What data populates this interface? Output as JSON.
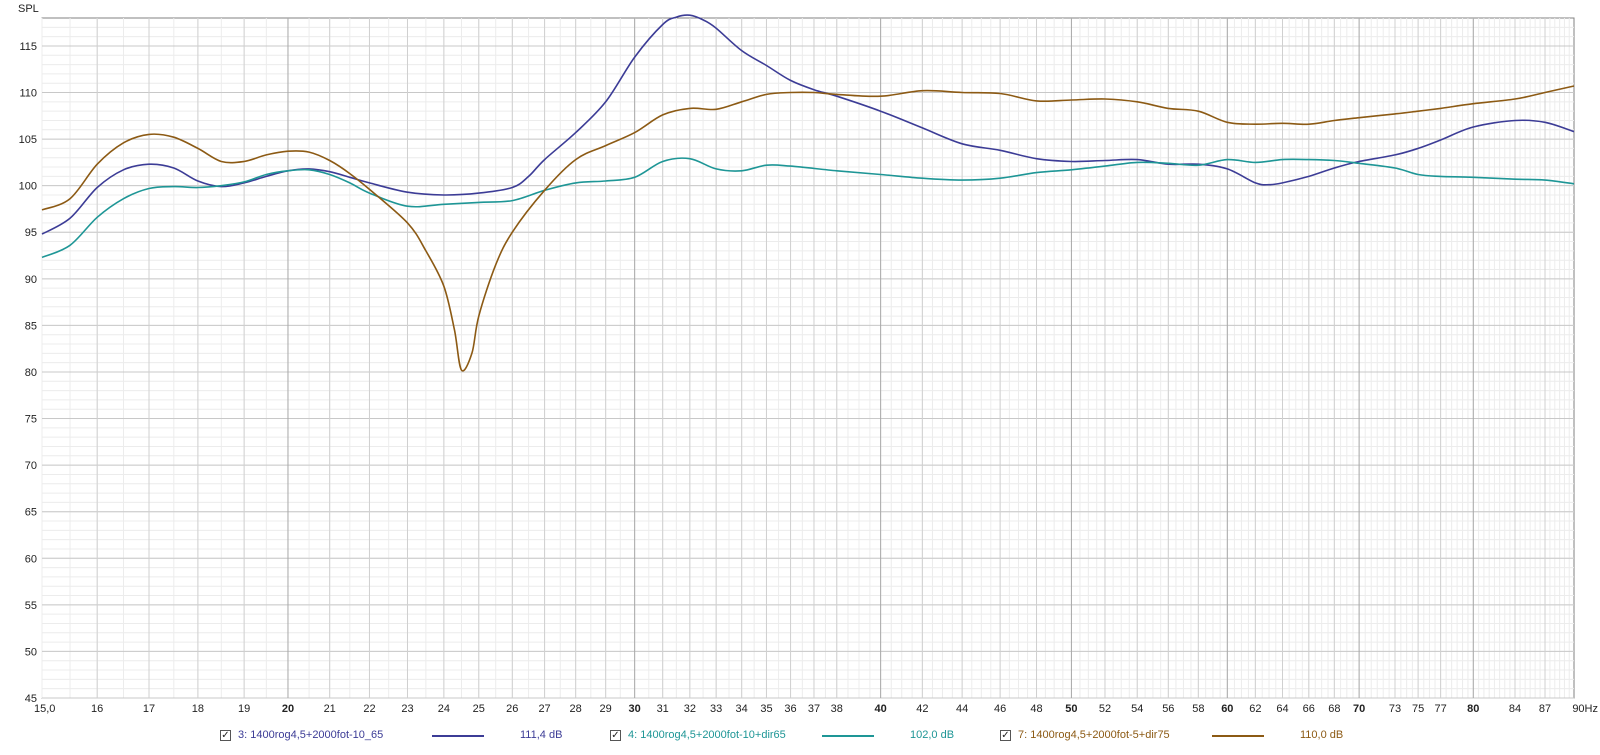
{
  "chart_data": {
    "type": "line",
    "ylabel": "SPL",
    "x_unit": "Hz",
    "x_scale": "log",
    "xlim": [
      15.0,
      90
    ],
    "ylim": [
      45,
      118
    ],
    "grid": true,
    "legend_position": "bottom",
    "y_ticks": [
      45,
      50,
      55,
      60,
      65,
      70,
      75,
      80,
      85,
      90,
      95,
      100,
      105,
      110,
      115
    ],
    "y_tick_labels": [
      "45",
      "50",
      "55",
      "60",
      "65",
      "70",
      "75",
      "80",
      "85",
      "90",
      "95",
      "100",
      "105",
      "110",
      "115"
    ],
    "x_ticks": [
      15,
      16,
      17,
      18,
      19,
      20,
      21,
      22,
      23,
      24,
      25,
      26,
      27,
      28,
      29,
      30,
      31,
      32,
      33,
      34,
      35,
      36,
      37,
      38,
      40,
      42,
      44,
      46,
      48,
      50,
      52,
      54,
      56,
      58,
      60,
      62,
      64,
      66,
      68,
      70,
      73,
      75,
      77,
      80,
      84,
      87,
      90
    ],
    "x_tick_labels": [
      "15,0",
      "16",
      "17",
      "18",
      "19",
      "20",
      "21",
      "22",
      "23",
      "24",
      "25",
      "26",
      "27",
      "28",
      "29",
      "30",
      "31",
      "32",
      "33",
      "34",
      "35",
      "36",
      "37",
      "38",
      "40",
      "42",
      "44",
      "46",
      "48",
      "50",
      "52",
      "54",
      "56",
      "58",
      "60",
      "62",
      "64",
      "66",
      "68",
      "70",
      "73",
      "75",
      "77",
      "80",
      "84",
      "87",
      "90Hz"
    ],
    "bold_x_ticks": [
      20,
      30,
      40,
      50,
      60,
      70,
      80
    ],
    "series": [
      {
        "name": "3: 1400rog4,5+2000fot-10_65",
        "value_label": "111,4 dB",
        "color": "#3c3c96",
        "x": [
          15,
          15.5,
          16,
          16.5,
          17,
          17.5,
          18,
          18.5,
          19,
          19.5,
          20,
          20.5,
          21,
          21.5,
          22,
          23,
          24,
          25,
          26,
          26.5,
          27,
          28,
          29,
          30,
          31,
          31.5,
          32,
          32.5,
          33,
          34,
          35,
          36,
          37,
          38,
          40,
          42,
          44,
          46,
          48,
          50,
          52,
          54,
          56,
          58,
          60,
          62,
          63,
          64,
          66,
          68,
          70,
          73,
          75,
          77,
          80,
          84,
          87,
          90
        ],
        "y": [
          94.8,
          96.5,
          99.8,
          101.7,
          102.3,
          101.9,
          100.5,
          99.9,
          100.3,
          101.0,
          101.6,
          101.8,
          101.5,
          100.9,
          100.3,
          99.3,
          99.0,
          99.2,
          99.8,
          101.0,
          102.8,
          105.7,
          109.0,
          113.8,
          117.3,
          118.1,
          118.3,
          117.8,
          116.9,
          114.5,
          112.9,
          111.3,
          110.3,
          109.6,
          108.0,
          106.2,
          104.5,
          103.8,
          102.9,
          102.6,
          102.7,
          102.8,
          102.3,
          102.3,
          101.8,
          100.3,
          100.1,
          100.3,
          101.0,
          101.9,
          102.6,
          103.3,
          104.0,
          104.9,
          106.3,
          107.0,
          106.8,
          105.8
        ]
      },
      {
        "name": "4: 1400rog4,5+2000fot-10+dir65",
        "value_label": "102,0 dB",
        "color": "#1e9696",
        "x": [
          15,
          15.5,
          16,
          16.5,
          17,
          17.5,
          18,
          18.5,
          19,
          19.5,
          20,
          20.5,
          21,
          21.5,
          22,
          23,
          24,
          25,
          26,
          27,
          28,
          29,
          30,
          31,
          32,
          33,
          34,
          35,
          36,
          38,
          40,
          42,
          44,
          46,
          48,
          50,
          52,
          54,
          56,
          58,
          60,
          62,
          64,
          66,
          68,
          70,
          73,
          75,
          77,
          80,
          84,
          87,
          90
        ],
        "y": [
          92.3,
          93.6,
          96.6,
          98.6,
          99.7,
          99.9,
          99.8,
          100.0,
          100.4,
          101.2,
          101.6,
          101.7,
          101.2,
          100.3,
          99.2,
          97.8,
          98.0,
          98.2,
          98.4,
          99.5,
          100.3,
          100.5,
          100.9,
          102.6,
          102.9,
          101.8,
          101.6,
          102.2,
          102.1,
          101.6,
          101.2,
          100.8,
          100.6,
          100.8,
          101.4,
          101.7,
          102.1,
          102.5,
          102.4,
          102.2,
          102.8,
          102.5,
          102.8,
          102.8,
          102.7,
          102.4,
          101.9,
          101.2,
          101.0,
          100.9,
          100.7,
          100.6,
          100.2
        ]
      },
      {
        "name": "7: 1400rog4,5+2000fot-5+dir75",
        "value_label": "110,0 dB",
        "color": "#8c5a14",
        "x": [
          15,
          15.5,
          16,
          16.5,
          17,
          17.5,
          18,
          18.5,
          19,
          19.5,
          20,
          20.5,
          21,
          21.5,
          22,
          23,
          23.5,
          24,
          24.3,
          24.5,
          24.8,
          25,
          25.5,
          26,
          27,
          28,
          29,
          30,
          31,
          32,
          33,
          34,
          35,
          36,
          37,
          38,
          40,
          42,
          44,
          46,
          48,
          50,
          52,
          54,
          56,
          58,
          60,
          62,
          64,
          66,
          68,
          70,
          73,
          75,
          77,
          80,
          84,
          87,
          90
        ],
        "y": [
          97.4,
          98.6,
          102.3,
          104.6,
          105.5,
          105.2,
          104.0,
          102.6,
          102.6,
          103.3,
          103.7,
          103.6,
          102.7,
          101.3,
          99.6,
          96.0,
          93.0,
          89.2,
          84.5,
          80.2,
          82.0,
          86.0,
          91.5,
          95.0,
          99.5,
          102.8,
          104.3,
          105.7,
          107.6,
          108.3,
          108.2,
          109.0,
          109.8,
          110.0,
          110.0,
          109.8,
          109.6,
          110.2,
          110.0,
          109.9,
          109.1,
          109.2,
          109.3,
          109.0,
          108.3,
          108.0,
          106.8,
          106.6,
          106.7,
          106.6,
          107.0,
          107.3,
          107.7,
          108.0,
          108.3,
          108.8,
          109.3,
          110.0,
          110.7
        ]
      }
    ]
  }
}
